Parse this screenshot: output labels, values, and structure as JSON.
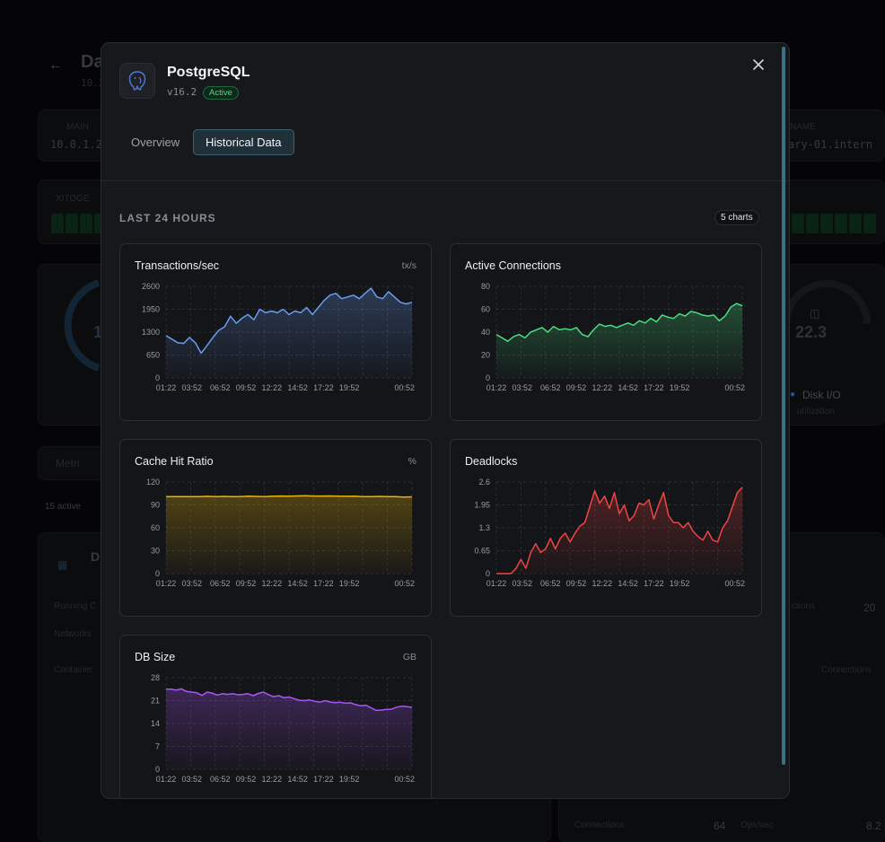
{
  "background": {
    "title_fragment": "Da",
    "ip_fragment": "10.2",
    "main_label": "MAIN",
    "main_value": "10.0.1.2",
    "hostname_label": "NAME",
    "hostname_value": "ary-01.intern",
    "xitoge_label": "XITOGE",
    "gauge_value": "22.3",
    "gauge_label": "Disk I/O",
    "gauge_sub": "utilization",
    "left_gauge": "1",
    "metrics_tab": "Metri",
    "active_count": "15 active",
    "container_initial": "D",
    "running_label": "Running C",
    "networks_label": "Networks",
    "container_label": "Container",
    "right_connections": "ctions",
    "right_value": "20",
    "connections_label": "Connections",
    "connections_bottom": "Connections",
    "connections_value": "64",
    "opssec_label": "Ops/sec",
    "opssec_value": "8.2"
  },
  "modal": {
    "title": "PostgreSQL",
    "version": "v16.2",
    "status": "Active",
    "close_icon": "close-icon",
    "logo_icon": "postgresql-elephant-icon",
    "tabs": [
      {
        "label": "Overview",
        "active": false
      },
      {
        "label": "Historical Data",
        "active": true
      }
    ],
    "section_title": "LAST 24 HOURS",
    "charts_count": "5 charts"
  },
  "chart_data": [
    {
      "type": "area",
      "title": "Transactions/sec",
      "unit": "tx/s",
      "color": "#6b9cf0",
      "yticks": [
        "0",
        "650",
        "1300",
        "1950",
        "2600"
      ],
      "ylim": [
        0,
        2600
      ],
      "xticks": [
        "01:22",
        "03:52",
        "06:52",
        "09:52",
        "12:22",
        "14:52",
        "17:22",
        "19:52",
        "00:52"
      ],
      "values": [
        1200,
        1100,
        1000,
        980,
        1150,
        1000,
        700,
        920,
        1150,
        1350,
        1450,
        1750,
        1550,
        1700,
        1800,
        1650,
        1950,
        1850,
        1900,
        1850,
        1950,
        1800,
        1900,
        1850,
        2000,
        1800,
        2000,
        2200,
        2350,
        2400,
        2250,
        2300,
        2350,
        2250,
        2400,
        2550,
        2300,
        2250,
        2450,
        2300,
        2150,
        2100,
        2150
      ]
    },
    {
      "type": "area",
      "title": "Active Connections",
      "unit": "",
      "color": "#4ade80",
      "yticks": [
        "0",
        "20",
        "40",
        "60",
        "80"
      ],
      "ylim": [
        0,
        80
      ],
      "xticks": [
        "01:22",
        "03:52",
        "06:52",
        "09:52",
        "12:22",
        "14:52",
        "17:22",
        "19:52",
        "00:52"
      ],
      "values": [
        38,
        35,
        32,
        36,
        38,
        35,
        40,
        42,
        44,
        40,
        45,
        42,
        43,
        42,
        44,
        38,
        36,
        42,
        47,
        45,
        46,
        44,
        46,
        48,
        46,
        50,
        48,
        52,
        49,
        55,
        53,
        52,
        56,
        54,
        58,
        57,
        55,
        54,
        55,
        50,
        54,
        62,
        65,
        63
      ]
    },
    {
      "type": "area",
      "title": "Cache Hit Ratio",
      "unit": "%",
      "color": "#eab308",
      "yticks": [
        "0",
        "30",
        "60",
        "90",
        "120"
      ],
      "ylim": [
        0,
        120
      ],
      "xticks": [
        "01:22",
        "03:52",
        "06:52",
        "09:52",
        "12:22",
        "14:52",
        "17:22",
        "19:52",
        "00:52"
      ],
      "values": [
        101,
        101,
        101,
        101,
        101,
        101.3,
        101,
        101.2,
        101,
        101,
        101.4,
        101.2,
        101,
        101.5,
        101.6,
        101.4,
        101.8,
        102,
        101.7,
        101.6,
        101.8,
        101.5,
        101.3,
        101.4,
        101,
        101,
        101.2,
        101,
        100.8,
        100.4,
        100.6
      ]
    },
    {
      "type": "area",
      "title": "Deadlocks",
      "unit": "",
      "color": "#ef4444",
      "yticks": [
        "0",
        "0.65",
        "1.3",
        "1.95",
        "2.6"
      ],
      "ylim": [
        0,
        2.6
      ],
      "xticks": [
        "01:22",
        "03:52",
        "06:52",
        "09:52",
        "12:22",
        "14:52",
        "17:22",
        "19:52",
        "00:52"
      ],
      "values": [
        0,
        0,
        0,
        0,
        0.15,
        0.4,
        0.15,
        0.6,
        0.85,
        0.6,
        0.7,
        1.0,
        0.7,
        1.0,
        1.15,
        0.9,
        1.15,
        1.35,
        1.45,
        1.9,
        2.35,
        2.0,
        2.2,
        1.85,
        2.3,
        1.7,
        1.95,
        1.5,
        1.65,
        2.0,
        1.95,
        2.1,
        1.55,
        1.95,
        2.3,
        1.65,
        1.45,
        1.45,
        1.3,
        1.45,
        1.2,
        1.05,
        0.95,
        1.2,
        0.95,
        0.9,
        1.3,
        1.5,
        1.9,
        2.3,
        2.45
      ]
    },
    {
      "type": "area",
      "title": "DB Size",
      "unit": "GB",
      "color": "#a855f7",
      "yticks": [
        "0",
        "7",
        "14",
        "21",
        "28"
      ],
      "ylim": [
        0,
        28
      ],
      "xticks": [
        "01:22",
        "03:52",
        "06:52",
        "09:52",
        "12:22",
        "14:52",
        "17:22",
        "19:52",
        "00:52"
      ],
      "values": [
        24.5,
        24.5,
        24.2,
        24.6,
        23.8,
        23.6,
        23.4,
        22.6,
        23.6,
        23.3,
        22.7,
        23.1,
        22.9,
        23.1,
        22.8,
        22.9,
        23.1,
        22.5,
        23.2,
        23.6,
        22.8,
        22.2,
        22.5,
        21.9,
        22.1,
        21.6,
        21.1,
        21.0,
        21.2,
        20.8,
        20.5,
        21.0,
        20.6,
        20.4,
        20.5,
        20.2,
        20.3,
        19.8,
        19.4,
        19.6,
        18.8,
        18.0,
        18.1,
        18.3,
        18.4,
        19.0,
        19.3,
        19.2,
        18.9
      ]
    }
  ]
}
